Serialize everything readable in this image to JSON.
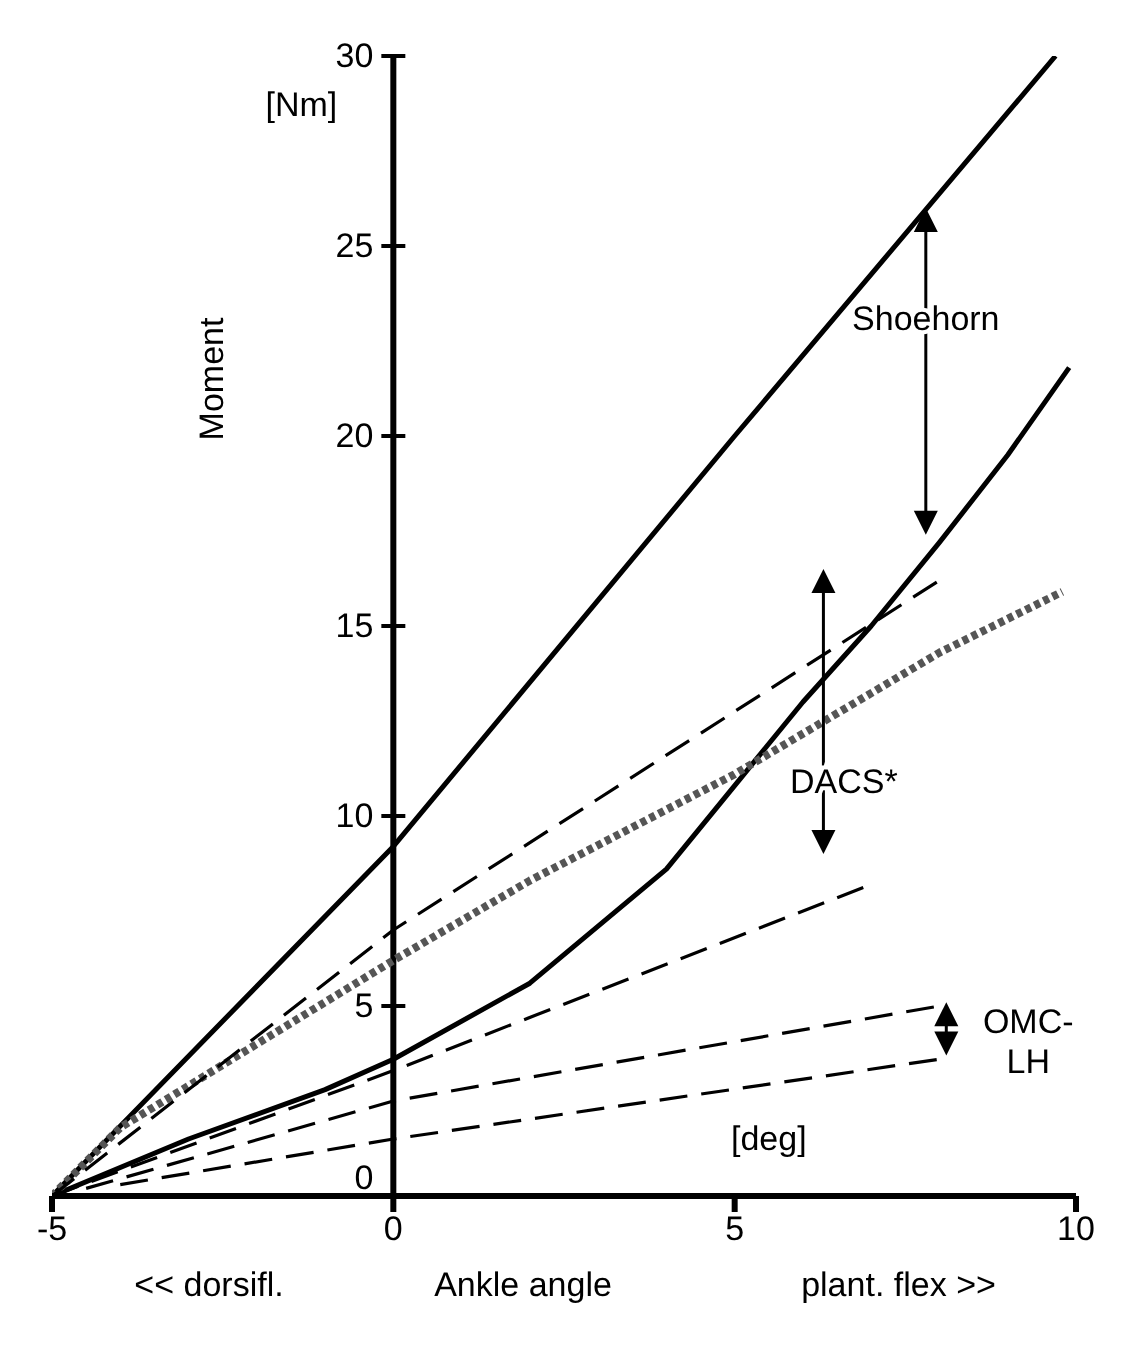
{
  "chart_data": {
    "type": "line",
    "xlabel": "Ankle angle",
    "ylabel": "Moment",
    "xlim": [
      -5,
      10
    ],
    "ylim": [
      0,
      30
    ],
    "xticks": [
      -5,
      0,
      5,
      10
    ],
    "yticks": [
      0,
      5,
      10,
      15,
      20,
      25,
      30
    ],
    "grid": false,
    "legend": false,
    "marker": "none",
    "series": [
      {
        "color": "#000000",
        "line_style": "solid",
        "x": [
          -5,
          0,
          5,
          9.7
        ],
        "values": [
          0,
          9.2,
          20,
          30
        ]
      },
      {
        "color": "#000000",
        "line_style": "solid",
        "x": [
          -5,
          -3,
          -1,
          0,
          2,
          4,
          5,
          6,
          7,
          8,
          9,
          9.9
        ],
        "values": [
          0,
          1.5,
          2.8,
          3.6,
          5.6,
          8.6,
          10.8,
          13,
          15,
          17.2,
          19.5,
          21.8
        ]
      },
      {
        "color": "#555555",
        "line_style": "dotted",
        "x": [
          -5,
          -4,
          -2,
          0,
          2,
          5,
          8,
          9.8
        ],
        "values": [
          0,
          1.8,
          4,
          6.2,
          8.3,
          11.1,
          14.3,
          15.9
        ]
      },
      {
        "color": "#000000",
        "line_style": "dashed",
        "x": [
          -5,
          0,
          8
        ],
        "values": [
          0,
          7,
          16.2
        ]
      },
      {
        "color": "#000000",
        "line_style": "dashed",
        "x": [
          -5,
          0,
          7
        ],
        "values": [
          0,
          3.3,
          8.2
        ]
      },
      {
        "color": "#000000",
        "line_style": "dashed",
        "x": [
          -4.5,
          0,
          8
        ],
        "values": [
          0.2,
          2.5,
          5
        ]
      },
      {
        "color": "#000000",
        "line_style": "dashed",
        "x": [
          -4,
          0,
          8
        ],
        "values": [
          0.3,
          1.5,
          3.6
        ]
      }
    ],
    "annotations": [
      "Shoehorn",
      "DACS*",
      "OMC-\nLH",
      "[Nm]",
      "[deg]",
      "<< dorsifl.",
      "plant. flex >>"
    ]
  }
}
